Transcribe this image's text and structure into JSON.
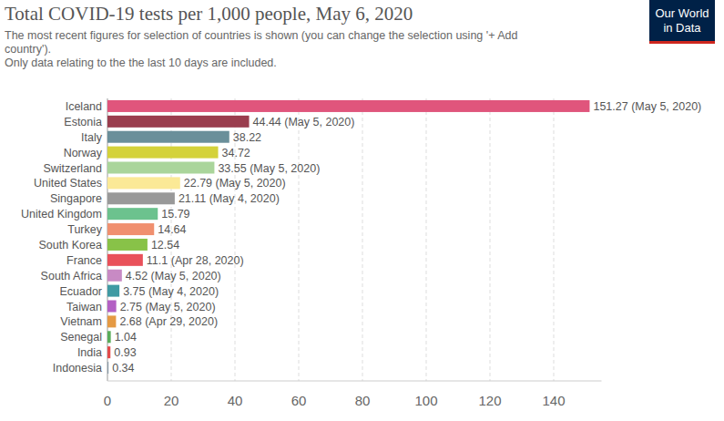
{
  "chart_data": {
    "type": "bar",
    "orientation": "horizontal",
    "title": "Total COVID-19 tests per 1,000 people, May 6, 2020",
    "subtitle": [
      "The most recent figures for selection of countries is shown (you can change the selection using '+ Add",
      "country').",
      "Only data relating to the the last 10 days are included."
    ],
    "annotations": [
      "Our World",
      "in Data"
    ],
    "categories": [
      "Iceland",
      "Estonia",
      "Italy",
      "Norway",
      "Switzerland",
      "United States",
      "Singapore",
      "United Kingdom",
      "Turkey",
      "South Korea",
      "France",
      "South Africa",
      "Ecuador",
      "Taiwan",
      "Vietnam",
      "Senegal",
      "India",
      "Indonesia"
    ],
    "values": [
      151.27,
      44.44,
      38.22,
      34.72,
      33.55,
      22.79,
      21.11,
      15.79,
      14.64,
      12.54,
      11.1,
      4.52,
      3.75,
      2.75,
      2.68,
      1.04,
      0.93,
      0.34
    ],
    "value_labels": [
      "151.27 (May 5, 2020)",
      "44.44 (May 5, 2020)",
      "38.22",
      "34.72",
      "33.55 (May 5, 2020)",
      "22.79 (May 5, 2020)",
      "21.11 (May 4, 2020)",
      "15.79",
      "14.64",
      "12.54",
      "11.1 (Apr 28, 2020)",
      "4.52 (May 5, 2020)",
      "3.75 (May 4, 2020)",
      "2.75 (May 5, 2020)",
      "2.68 (Apr 29, 2020)",
      "1.04",
      "0.93",
      "0.34"
    ],
    "colors": [
      "#e0557c",
      "#9a3d4e",
      "#6a8f9a",
      "#d4d23a",
      "#aad59b",
      "#fbe996",
      "#999999",
      "#6cc28e",
      "#f0906f",
      "#88c248",
      "#e9515a",
      "#c88ac4",
      "#3f9aa3",
      "#b360c4",
      "#e59a44",
      "#59ad5a",
      "#e34a4a",
      "#8a9aa8"
    ],
    "data_labels": true,
    "grid": true,
    "xlim": [
      0,
      155
    ],
    "xticks": [
      0,
      20,
      40,
      60,
      80,
      100,
      120,
      140
    ]
  }
}
